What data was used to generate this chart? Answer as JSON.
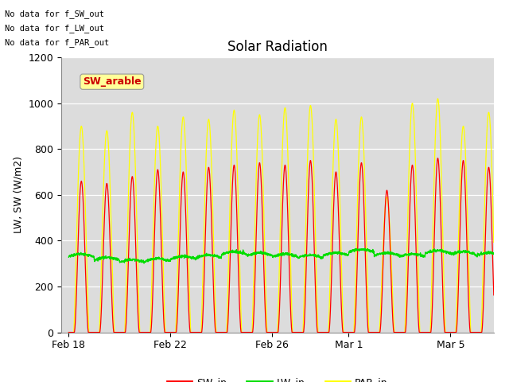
{
  "title": "Solar Radiation",
  "ylabel": "LW, SW (W/m2)",
  "ylim": [
    0,
    1200
  ],
  "yticks": [
    0,
    200,
    400,
    600,
    800,
    1000,
    1200
  ],
  "plot_bg_color": "#dcdcdc",
  "sw_in_color": "#ff0000",
  "lw_in_color": "#00dd00",
  "par_in_color": "#ffff00",
  "legend_labels": [
    "SW_in",
    "LW_in",
    "PAR_in"
  ],
  "top_left_text": [
    "No data for f_SW_out",
    "No data for f_LW_out",
    "No data for f_PAR_out"
  ],
  "bbox_label": "SW_arable",
  "bbox_label_color": "#cc0000",
  "bbox_bg_color": "#ffff99",
  "n_days": 17,
  "x_tick_labels": [
    "Feb 18",
    "Feb 22",
    "Feb 26",
    "Mar 1",
    "Mar 5"
  ],
  "x_tick_positions": [
    0,
    4,
    8,
    11,
    15
  ],
  "peak_heights_par": [
    900,
    880,
    960,
    900,
    940,
    930,
    970,
    950,
    980,
    990,
    930,
    940,
    590,
    1000,
    1020,
    900,
    960
  ],
  "peak_heights_sw": [
    660,
    650,
    680,
    710,
    700,
    720,
    730,
    740,
    730,
    750,
    700,
    740,
    620,
    730,
    760,
    750,
    720
  ],
  "lw_base_values": [
    330,
    315,
    305,
    310,
    320,
    325,
    340,
    335,
    330,
    325,
    335,
    350,
    335,
    330,
    345,
    340,
    335
  ],
  "figsize": [
    6.4,
    4.8
  ],
  "dpi": 100
}
